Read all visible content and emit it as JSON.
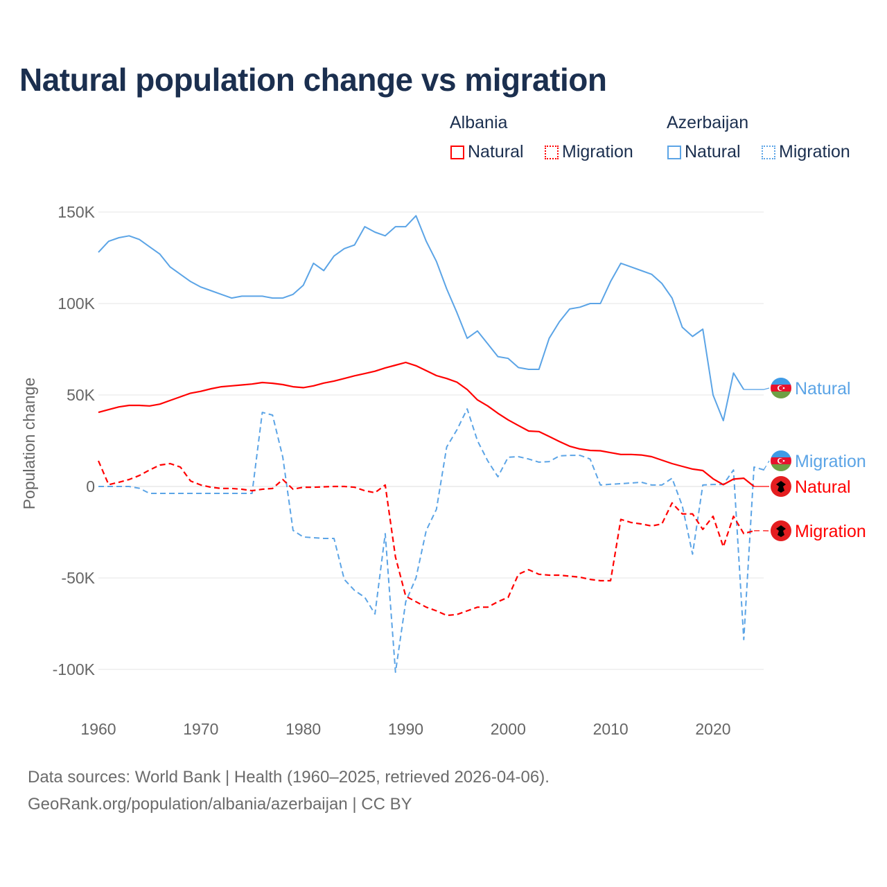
{
  "chart_data": {
    "type": "line",
    "title": "Natural population change vs migration",
    "xlabel": "",
    "ylabel": "Population change",
    "xlim": [
      1960,
      2025
    ],
    "ylim": [
      -100000,
      150000
    ],
    "x_ticks": [
      "1960",
      "1970",
      "1980",
      "1990",
      "2000",
      "2010",
      "2020"
    ],
    "y_ticks": [
      {
        "value": 150,
        "label": "150K"
      },
      {
        "value": 100,
        "label": "100K"
      },
      {
        "value": 50,
        "label": "50K"
      },
      {
        "value": 0,
        "label": "0"
      },
      {
        "value": -50,
        "label": "-50K"
      },
      {
        "value": -100,
        "label": "-100K"
      }
    ],
    "grid": true,
    "legend_placement": "top-right",
    "value_units": "thousands",
    "legend": {
      "groups": [
        {
          "name": "Albania",
          "items": [
            {
              "label": "Natural",
              "style": "solid",
              "color": "#ff0000"
            },
            {
              "label": "Migration",
              "style": "dotted",
              "color": "#ff0000"
            }
          ]
        },
        {
          "name": "Azerbaijan",
          "items": [
            {
              "label": "Natural",
              "style": "solid",
              "color": "#5ba4e6"
            },
            {
              "label": "Migration",
              "style": "dotted",
              "color": "#5ba4e6"
            }
          ]
        }
      ]
    },
    "series": [
      {
        "id": "az-natural",
        "country": "Azerbaijan",
        "name": "Natural",
        "color": "#5ba4e6",
        "dash": false,
        "start": 1960,
        "values": [
          128,
          134,
          136,
          137,
          135,
          131,
          127,
          120,
          116,
          112,
          109,
          107,
          105,
          103,
          104,
          104,
          104,
          103,
          103,
          105,
          110,
          122,
          118,
          126,
          130,
          132,
          142,
          139,
          137,
          142,
          142,
          148,
          134,
          123,
          108,
          95,
          81,
          85,
          78,
          71,
          70,
          65,
          64,
          64,
          81,
          90,
          97,
          98,
          100,
          100,
          112,
          122,
          120,
          118,
          116,
          111,
          103,
          87,
          82,
          86,
          50,
          36,
          62,
          53
        ]
      },
      {
        "id": "az-migration",
        "country": "Azerbaijan",
        "name": "Migration",
        "color": "#5ba4e6",
        "dash": true,
        "start": 1960,
        "values": [
          0,
          0,
          0,
          0,
          -1,
          -3.8,
          -3.8,
          -3.8,
          -3.8,
          -3.8,
          -3.8,
          -3.8,
          -3.8,
          -3.8,
          -3.8,
          -3.8,
          40.5,
          39,
          16,
          -24,
          -27.6,
          -28,
          -28.4,
          -28.4,
          -50.8,
          -56.8,
          -60.6,
          -69.7,
          -25.8,
          -101.5,
          -63,
          -50,
          -24,
          -12.5,
          21.6,
          31,
          42.4,
          25,
          14,
          5.3,
          16,
          16.3,
          15,
          13.3,
          13.6,
          16.7,
          17,
          17,
          15,
          0.8,
          1.2,
          1.5,
          1.9,
          2.3,
          0.8,
          0.8,
          4.5,
          -10.6,
          -37,
          0.8,
          1.1,
          1.1,
          9,
          -83.7,
          10.6,
          9
        ]
      },
      {
        "id": "al-natural",
        "country": "Albania",
        "name": "Natural",
        "color": "#ff0000",
        "dash": false,
        "start": 1960,
        "values": [
          40.5,
          42,
          43.5,
          44.3,
          44.3,
          44,
          45,
          47,
          49,
          51,
          52,
          53.4,
          54.5,
          55,
          55.5,
          56,
          56.8,
          56.4,
          55.7,
          54.5,
          54,
          55,
          56.5,
          57.6,
          59,
          60.5,
          61.7,
          63,
          64.8,
          66.3,
          67.8,
          66,
          63.3,
          60.6,
          59,
          57,
          53,
          47.3,
          44,
          40,
          36.4,
          33.3,
          30.3,
          30,
          27.3,
          24.6,
          22,
          20.5,
          19.7,
          19.5,
          18.5,
          17.5,
          17.5,
          17.2,
          16.3,
          14.4,
          12.5,
          11,
          9.5,
          8.7,
          4.2,
          1,
          4,
          4.5,
          0
        ]
      },
      {
        "id": "al-migration",
        "country": "Albania",
        "name": "Migration",
        "color": "#ff0000",
        "dash": true,
        "start": 1960,
        "values": [
          14,
          1,
          2.3,
          3.8,
          6,
          9,
          11.7,
          12.5,
          10.6,
          3,
          0.8,
          -0.4,
          -1.1,
          -1.1,
          -1.5,
          -2.3,
          -1.5,
          -1.1,
          3.8,
          -1.5,
          -0.4,
          -0.4,
          -0.2,
          0,
          0,
          -0.4,
          -2.3,
          -3.4,
          0.8,
          -38.6,
          -60,
          -63,
          -66,
          -68,
          -70.5,
          -70,
          -68,
          -66,
          -66,
          -63,
          -60.6,
          -48,
          -45.5,
          -48,
          -48.5,
          -48.5,
          -49,
          -49.6,
          -50.8,
          -51.5,
          -51.5,
          -18,
          -19.7,
          -20.5,
          -21.6,
          -20.5,
          -9,
          -15,
          -15,
          -23.5,
          -16.3,
          -33,
          -16.3,
          -25.8,
          -24.2
        ]
      }
    ],
    "end_labels": [
      {
        "series": "az-natural",
        "text": "Natural",
        "flag": "azerbaijan"
      },
      {
        "series": "az-migration",
        "text": "Migration",
        "flag": "azerbaijan"
      },
      {
        "series": "al-natural",
        "text": "Natural",
        "flag": "albania"
      },
      {
        "series": "al-migration",
        "text": "Migration",
        "flag": "albania"
      }
    ]
  },
  "footer": {
    "line1": "Data sources: World Bank | Health (1960–2025, retrieved 2026-04-06).",
    "line2": "GeoRank.org/population/albania/azerbaijan | CC BY"
  }
}
